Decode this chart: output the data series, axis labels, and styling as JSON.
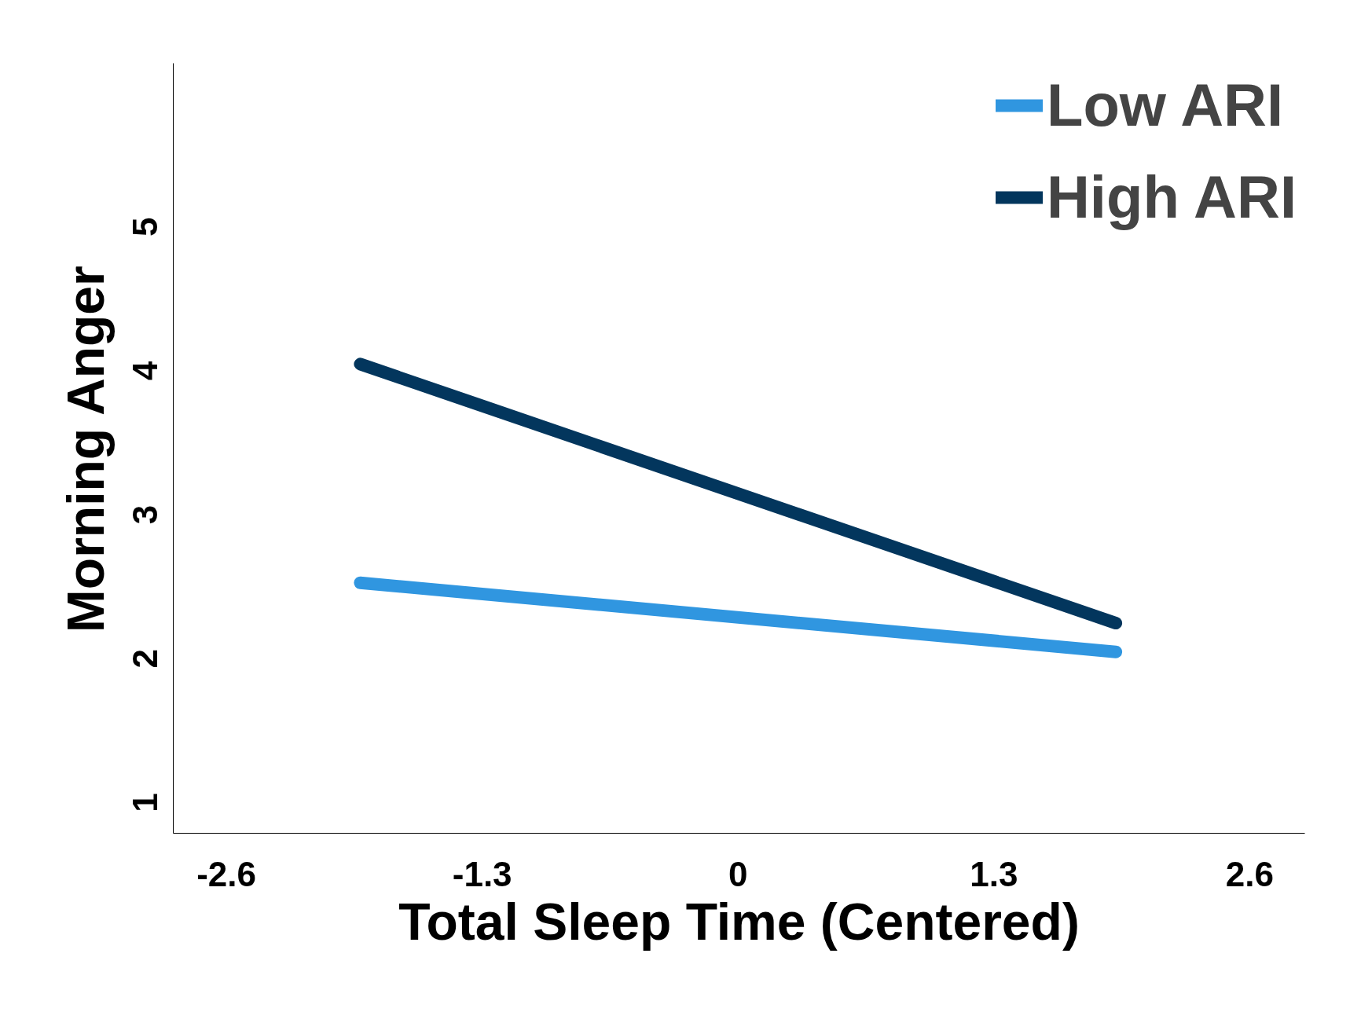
{
  "chart_data": {
    "type": "line",
    "xlabel": "Total Sleep Time (Centered)",
    "ylabel": "Morning Anger",
    "x": [
      -1.92,
      1.92
    ],
    "series": [
      {
        "name": "Low ARI",
        "color": "#3096e0",
        "values": [
          2.46,
          1.98
        ]
      },
      {
        "name": "High ARI",
        "color": "#03365d",
        "values": [
          3.98,
          2.18
        ]
      }
    ],
    "xlim": [
      -2.87,
      2.88
    ],
    "xticks": [
      -2.6,
      -1.3,
      0,
      1.3,
      2.6
    ],
    "ylim": [
      0.72,
      6.07
    ],
    "yticks": [
      1,
      2,
      3,
      4,
      5
    ],
    "grid": false,
    "legend": "top right",
    "marker": "none",
    "line_style": "solid"
  }
}
